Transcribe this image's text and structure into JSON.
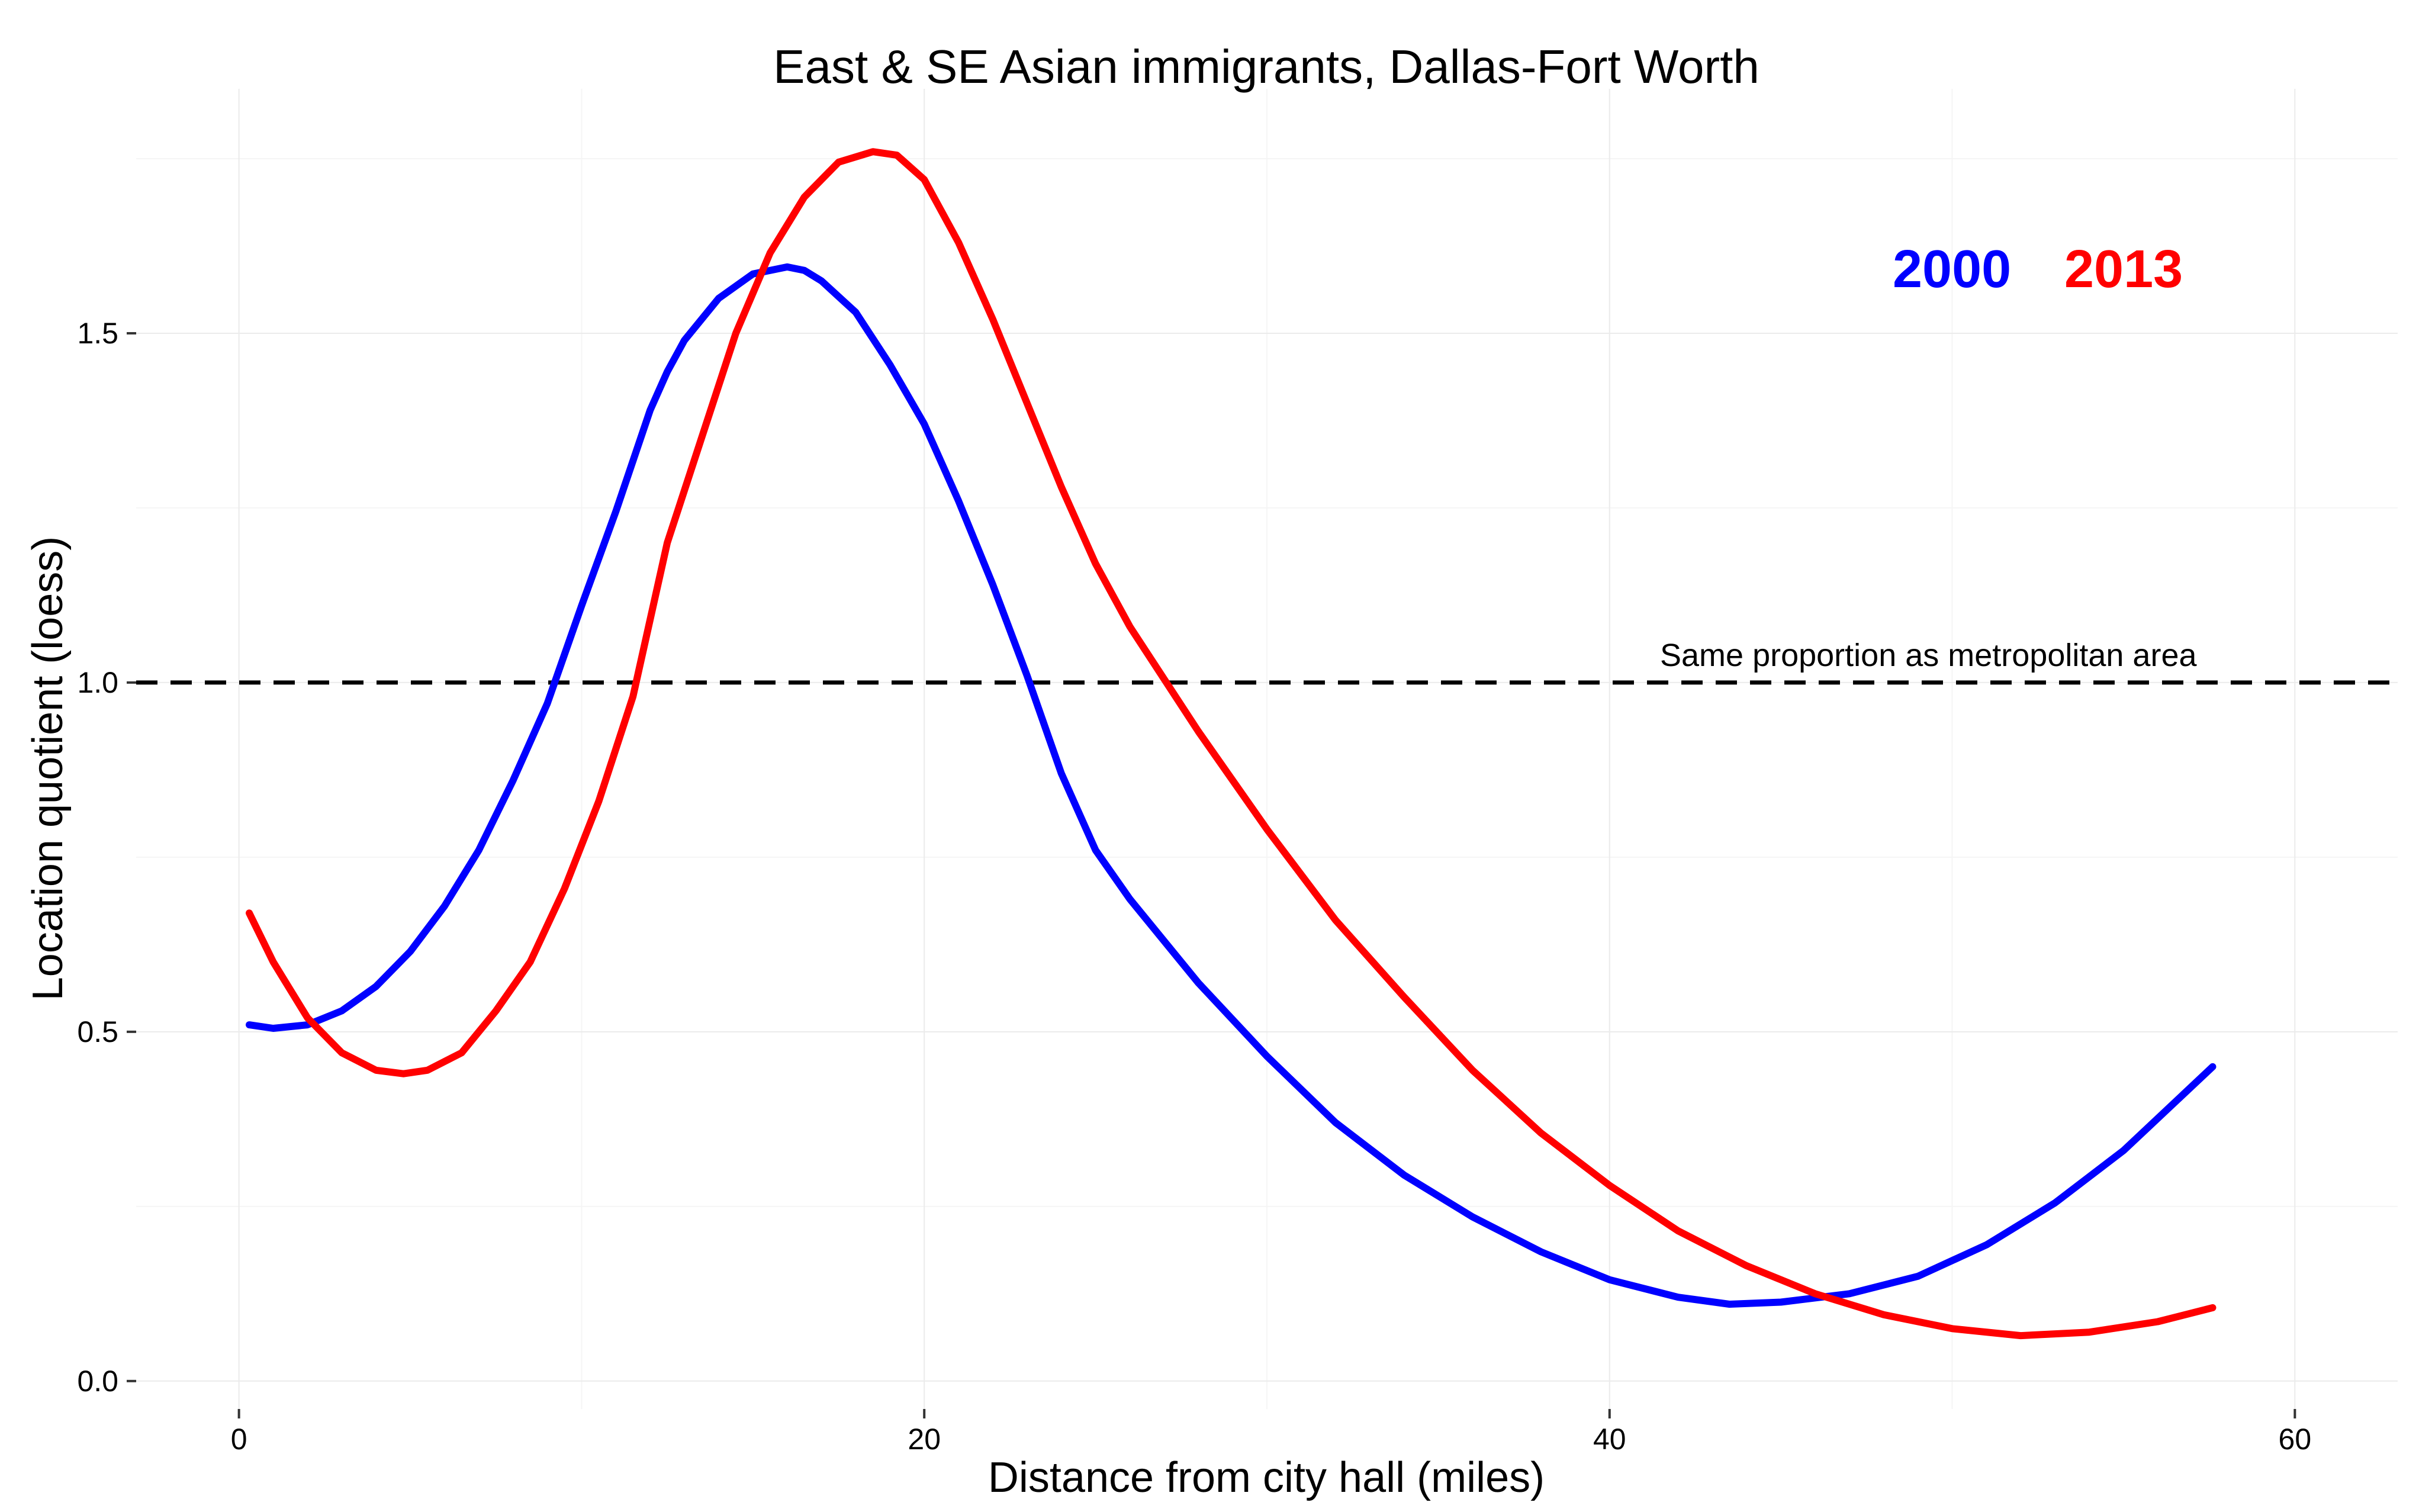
{
  "chart_data": {
    "type": "line",
    "title": "East & SE Asian immigrants, Dallas-Fort Worth",
    "xlabel": "Distance from city hall (miles)",
    "ylabel": "Location quotient (loess)",
    "xlim": [
      -3,
      63
    ],
    "ylim": [
      -0.04,
      1.85
    ],
    "x_ticks": [
      0,
      20,
      40,
      60
    ],
    "x_tick_labels": [
      "0",
      "20",
      "40",
      "60"
    ],
    "y_ticks": [
      0,
      0.5,
      1,
      1.5
    ],
    "y_tick_labels": [
      "0.0",
      "0.5",
      "1.0",
      "1.5"
    ],
    "grid": true,
    "legend_placement": "top-right",
    "reference_line": {
      "y": 1.0,
      "label": "Same proportion as metropolitan area",
      "color": "#000000"
    },
    "series": [
      {
        "name": "2000",
        "color": "#0000ff",
        "x": [
          0.3,
          1,
          2,
          3,
          4,
          5,
          6,
          7,
          8,
          9,
          10,
          11,
          12,
          12.5,
          13,
          14,
          15,
          16,
          16.5,
          17,
          18,
          19,
          20,
          21,
          22,
          23,
          24,
          25,
          26,
          28,
          30,
          32,
          34,
          36,
          38,
          40,
          42,
          43.5,
          45,
          47,
          49,
          51,
          53,
          55,
          57.6
        ],
        "y": [
          0.51,
          0.505,
          0.51,
          0.53,
          0.565,
          0.615,
          0.68,
          0.76,
          0.86,
          0.97,
          1.11,
          1.245,
          1.39,
          1.445,
          1.49,
          1.55,
          1.585,
          1.595,
          1.59,
          1.575,
          1.53,
          1.455,
          1.37,
          1.26,
          1.14,
          1.01,
          0.87,
          0.76,
          0.69,
          0.57,
          0.465,
          0.37,
          0.295,
          0.235,
          0.185,
          0.145,
          0.12,
          0.11,
          0.113,
          0.125,
          0.15,
          0.195,
          0.255,
          0.33,
          0.45
        ]
      },
      {
        "name": "2013",
        "color": "#ff0000",
        "x": [
          0.3,
          1,
          2,
          3,
          4,
          4.8,
          5.5,
          6.5,
          7.5,
          8.5,
          9.5,
          10.5,
          11.5,
          12.5,
          13.5,
          14.5,
          15.5,
          16.5,
          17.5,
          18.5,
          19.2,
          20,
          21,
          22,
          23,
          24,
          25,
          26,
          28,
          30,
          32,
          34,
          36,
          38,
          40,
          42,
          44,
          46,
          48,
          50,
          52,
          54,
          56,
          57.6
        ],
        "y": [
          0.67,
          0.6,
          0.52,
          0.47,
          0.445,
          0.44,
          0.445,
          0.47,
          0.53,
          0.6,
          0.705,
          0.83,
          0.98,
          1.2,
          1.35,
          1.5,
          1.615,
          1.695,
          1.745,
          1.76,
          1.755,
          1.72,
          1.63,
          1.52,
          1.4,
          1.28,
          1.17,
          1.08,
          0.93,
          0.79,
          0.66,
          0.55,
          0.445,
          0.355,
          0.28,
          0.215,
          0.165,
          0.125,
          0.095,
          0.075,
          0.065,
          0.07,
          0.085,
          0.105
        ]
      }
    ]
  }
}
